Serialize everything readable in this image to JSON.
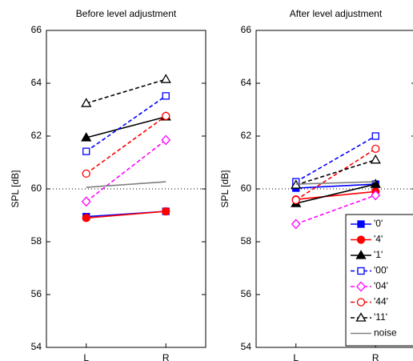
{
  "chart_data": [
    {
      "type": "line",
      "title": "Before level adjustment",
      "ylabel": "SPL [dB]",
      "categories": [
        "L",
        "R"
      ],
      "ylim": [
        54,
        66
      ],
      "yticks": [
        54,
        56,
        58,
        60,
        62,
        64,
        66
      ],
      "hline": 60,
      "legend": false,
      "series": [
        {
          "color": "#0000ff",
          "dash": false,
          "marker": "square",
          "filled": true,
          "values": [
            58.95,
            59.15
          ]
        },
        {
          "color": "#ff0000",
          "dash": false,
          "marker": "circle",
          "filled": true,
          "values": [
            58.9,
            59.15
          ]
        },
        {
          "color": "#000000",
          "dash": false,
          "marker": "triangle",
          "filled": true,
          "values": [
            61.94,
            62.73
          ]
        },
        {
          "color": "#0000ff",
          "dash": true,
          "marker": "square",
          "filled": false,
          "values": [
            61.42,
            63.52
          ]
        },
        {
          "color": "#ff00ff",
          "dash": true,
          "marker": "diamond",
          "filled": false,
          "values": [
            59.52,
            61.85
          ]
        },
        {
          "color": "#ff0000",
          "dash": true,
          "marker": "circle",
          "filled": false,
          "values": [
            60.58,
            62.76
          ]
        },
        {
          "color": "#000000",
          "dash": true,
          "marker": "triangle",
          "filled": false,
          "values": [
            63.24,
            64.15
          ]
        },
        {
          "color": "#808080",
          "dash": false,
          "marker": "none",
          "filled": false,
          "values": [
            60.06,
            60.27
          ]
        }
      ]
    },
    {
      "type": "line",
      "title": "After level adjustment",
      "ylabel": "SPL [dB]",
      "categories": [
        "L",
        "R"
      ],
      "ylim": [
        54,
        66
      ],
      "yticks": [
        54,
        56,
        58,
        60,
        62,
        64,
        66
      ],
      "hline": 60,
      "legend": "lower right",
      "series": [
        {
          "name": "'0'",
          "color": "#0000ff",
          "dash": false,
          "marker": "square",
          "filled": true,
          "values": [
            60.03,
            60.18
          ]
        },
        {
          "name": "'4'",
          "color": "#ff0000",
          "dash": false,
          "marker": "circle",
          "filled": true,
          "values": [
            59.6,
            59.9
          ]
        },
        {
          "name": "'1'",
          "color": "#000000",
          "dash": false,
          "marker": "triangle",
          "filled": true,
          "values": [
            59.45,
            60.18
          ]
        },
        {
          "name": "'00'",
          "color": "#0000ff",
          "dash": true,
          "marker": "square",
          "filled": false,
          "values": [
            60.27,
            62.0
          ]
        },
        {
          "name": "'04'",
          "color": "#ff00ff",
          "dash": true,
          "marker": "diamond",
          "filled": false,
          "values": [
            58.67,
            59.76
          ]
        },
        {
          "name": "'44'",
          "color": "#ff0000",
          "dash": true,
          "marker": "circle",
          "filled": false,
          "values": [
            59.58,
            61.52
          ]
        },
        {
          "name": "'11'",
          "color": "#000000",
          "dash": true,
          "marker": "triangle",
          "filled": false,
          "values": [
            60.15,
            61.1
          ]
        },
        {
          "name": "noise",
          "color": "#808080",
          "dash": false,
          "marker": "none",
          "filled": false,
          "values": [
            60.18,
            60.27
          ]
        }
      ]
    }
  ]
}
